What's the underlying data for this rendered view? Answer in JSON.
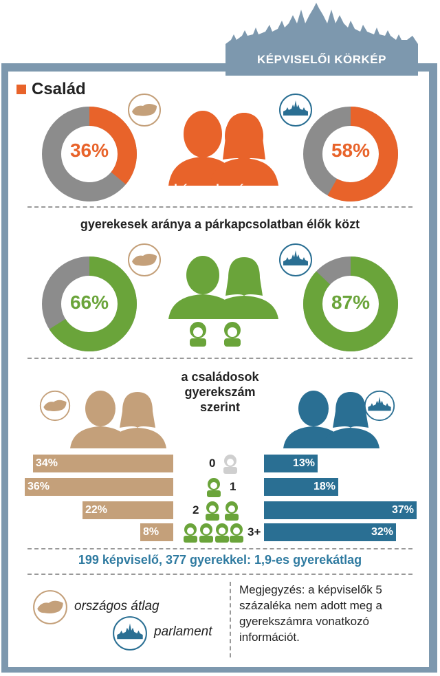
{
  "header": {
    "title": "KÉPVISELŐI KÖRKÉP"
  },
  "section": {
    "title": "Család"
  },
  "colors": {
    "orange": "#e8632a",
    "green": "#6aa43a",
    "gray": "#8c8c8c",
    "tan": "#c4a07a",
    "blue": "#2a6f93",
    "frame": "#7d98ae"
  },
  "married": {
    "caption": "házasok aránya",
    "national": "36%",
    "parliament": "58%"
  },
  "children_caption": "gyerekesek aránya a párkapcsolatban élők közt",
  "with_children": {
    "national": "66%",
    "parliament": "87%"
  },
  "distribution_caption": [
    "a családosok",
    "gyerekszám",
    "szerint"
  ],
  "counts": [
    "0",
    "1",
    "2",
    "3+"
  ],
  "summary": "199 képviselő, 377 gyerekkel: 1,9-es gyerekátlag",
  "legend": {
    "national": "országos átlag",
    "parliament": "parlament"
  },
  "note": "Megjegyzés: a képviselők 5 százaléka nem adott meg a gyerekszámra vonatkozó információt.",
  "chart_data": [
    {
      "type": "pie",
      "title": "házasok aránya",
      "series": [
        {
          "name": "országos átlag",
          "values": [
            36,
            64
          ]
        },
        {
          "name": "parlament",
          "values": [
            58,
            42
          ]
        }
      ]
    },
    {
      "type": "pie",
      "title": "gyerekesek aránya a párkapcsolatban élők közt",
      "series": [
        {
          "name": "országos átlag",
          "values": [
            66,
            34
          ]
        },
        {
          "name": "parlament",
          "values": [
            87,
            13
          ]
        }
      ]
    },
    {
      "type": "bar",
      "title": "a családosok gyerekszám szerint",
      "categories": [
        "0",
        "1",
        "2",
        "3+"
      ],
      "series": [
        {
          "name": "országos átlag",
          "values": [
            34,
            36,
            22,
            8
          ],
          "labels": [
            "34%",
            "36%",
            "22%",
            "8%"
          ]
        },
        {
          "name": "parlament",
          "values": [
            13,
            18,
            37,
            32
          ],
          "labels": [
            "13%",
            "18%",
            "37%",
            "32%"
          ]
        }
      ]
    }
  ]
}
